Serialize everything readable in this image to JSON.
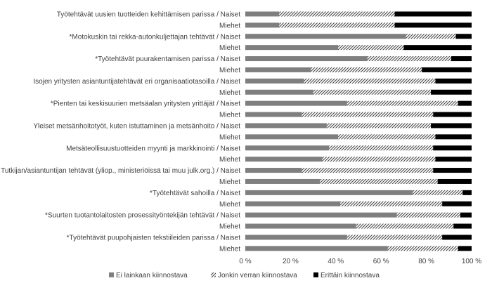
{
  "chart_data": {
    "type": "bar",
    "orientation": "horizontal",
    "stacked": true,
    "percent": true,
    "title": "",
    "xlabel": "",
    "ylabel": "",
    "xlim": [
      0,
      100
    ],
    "x_ticks": [
      "0 %",
      "20 %",
      "40 %",
      "60 %",
      "80 %",
      "100 %"
    ],
    "grid": false,
    "legend_position": "bottom",
    "categories": [
      "Työtehtävät uusien tuotteiden kehittämisen parissa / Naiset",
      "Miehet",
      "*Motokuskin tai rekka-autonkuljettajan tehtävät / Naiset",
      "Miehet",
      "*Työtehtävät puurakentamisen parissa / Naiset",
      "Miehet",
      "Isojen yritysten asiantuntijatehtävät eri organisaatiotasoilla / Naiset",
      "Miehet",
      "*Pienten tai keskisuurien metsäalan yritysten yrittäjät / Naiset",
      "Miehet",
      "Yleiset metsänhoitotyöt, kuten istuttaminen ja metsänhoito / Naiset",
      "Miehet",
      "Metsäteollisuustuotteiden myynti ja markkinointi / Naiset",
      "Miehet",
      "Tutkijan/asiantuntijan tehtävät (yliop., ministeriöissä tai muu julk.org.) / Naiset",
      "Miehet",
      "*Työtehtävät sahoilla / Naiset",
      "Miehet",
      "*Suurten tuotantolaitosten prosessityöntekijän tehtävät / Naiset",
      "Miehet",
      "*Työtehtävät puupohjaisten tekstiileiden parissa / Naiset",
      "Miehet"
    ],
    "series": [
      {
        "name": "Ei lainkaan kiinnostava",
        "color": "#7f7f7f",
        "pattern": "solid",
        "values": [
          15,
          15,
          71,
          41,
          54,
          29,
          26,
          30,
          45,
          25,
          36,
          41,
          37,
          34,
          25,
          33,
          74,
          42,
          67,
          49,
          45,
          63
        ]
      },
      {
        "name": "Jonkin verran kiinnostava",
        "color": "#404040",
        "pattern": "diagonal-hatch",
        "values": [
          51,
          51,
          22,
          29,
          37,
          49,
          58,
          52,
          49,
          58,
          46,
          43,
          46,
          50,
          58,
          52,
          22,
          45,
          28,
          43,
          42,
          31
        ]
      },
      {
        "name": "Erittäin kiinnostava",
        "color": "#000000",
        "pattern": "solid",
        "values": [
          34,
          34,
          7,
          30,
          9,
          22,
          16,
          18,
          6,
          17,
          18,
          16,
          17,
          16,
          17,
          15,
          4,
          13,
          5,
          8,
          13,
          6
        ]
      }
    ]
  }
}
